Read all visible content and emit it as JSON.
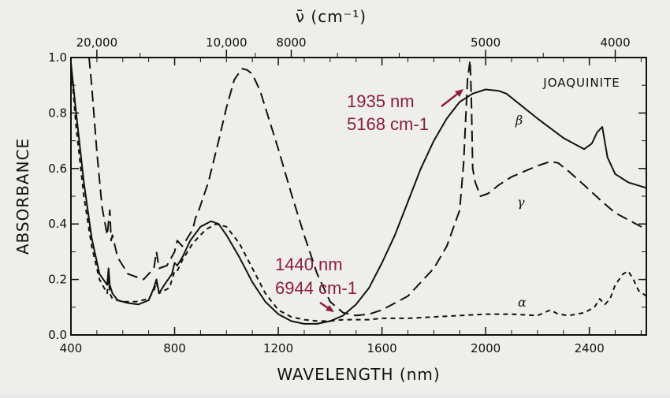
{
  "chart_data": {
    "type": "line",
    "title": "JOAQUINITE",
    "xlabel": "WAVELENGTH (nm)",
    "ylabel": "ABSORBANCE",
    "top_axis_label": "ν̄ (cm⁻¹)",
    "xlim": [
      400,
      2620
    ],
    "ylim": [
      0.0,
      1.0
    ],
    "x_ticks": [
      400,
      800,
      1200,
      1600,
      2000,
      2400
    ],
    "x_tick_labels": [
      "400",
      "800",
      "1200",
      "1600",
      "2000",
      "2400"
    ],
    "y_ticks": [
      0.0,
      0.2,
      0.4,
      0.6,
      0.8,
      1.0
    ],
    "y_tick_labels": [
      "0.0",
      "0.2",
      "0.4",
      "0.6",
      "0.8",
      "1.0"
    ],
    "top_ticks": [
      20000,
      10000,
      8000,
      5000,
      4000
    ],
    "top_tick_labels": [
      "20,000",
      "10,000",
      "8000",
      "5000",
      "4000"
    ],
    "series": [
      {
        "name": "β",
        "style": "solid",
        "x": [
          400,
          420,
          450,
          480,
          510,
          540,
          545,
          550,
          560,
          580,
          620,
          660,
          700,
          720,
          730,
          740,
          760,
          790,
          800,
          810,
          830,
          860,
          900,
          940,
          970,
          1000,
          1050,
          1100,
          1150,
          1200,
          1250,
          1300,
          1350,
          1400,
          1450,
          1500,
          1550,
          1600,
          1650,
          1700,
          1750,
          1800,
          1850,
          1900,
          1950,
          2000,
          2050,
          2080,
          2120,
          2200,
          2300,
          2380,
          2410,
          2430,
          2450,
          2470,
          2500,
          2550,
          2620
        ],
        "y": [
          0.98,
          0.8,
          0.55,
          0.35,
          0.22,
          0.18,
          0.24,
          0.18,
          0.15,
          0.125,
          0.115,
          0.11,
          0.125,
          0.17,
          0.2,
          0.15,
          0.18,
          0.22,
          0.26,
          0.25,
          0.28,
          0.34,
          0.39,
          0.41,
          0.4,
          0.36,
          0.28,
          0.19,
          0.12,
          0.075,
          0.05,
          0.04,
          0.04,
          0.05,
          0.07,
          0.11,
          0.17,
          0.26,
          0.36,
          0.48,
          0.6,
          0.7,
          0.78,
          0.84,
          0.87,
          0.885,
          0.88,
          0.87,
          0.84,
          0.78,
          0.71,
          0.67,
          0.69,
          0.73,
          0.75,
          0.64,
          0.58,
          0.55,
          0.53
        ]
      },
      {
        "name": "γ",
        "style": "long-dash",
        "x": [
          470,
          480,
          500,
          520,
          540,
          550,
          555,
          560,
          580,
          620,
          680,
          720,
          730,
          740,
          770,
          800,
          810,
          830,
          870,
          880,
          890,
          930,
          970,
          1000,
          1030,
          1060,
          1080,
          1100,
          1130,
          1160,
          1200,
          1250,
          1300,
          1350,
          1400,
          1450,
          1500,
          1550,
          1600,
          1700,
          1800,
          1850,
          1900,
          1915,
          1930,
          1940,
          1945,
          1950,
          1960,
          1980,
          2010,
          2050,
          2100,
          2150,
          2200,
          2250,
          2280,
          2320,
          2380,
          2450,
          2500,
          2560,
          2620
        ],
        "y": [
          1.0,
          0.9,
          0.66,
          0.46,
          0.36,
          0.45,
          0.34,
          0.36,
          0.28,
          0.22,
          0.2,
          0.24,
          0.3,
          0.24,
          0.25,
          0.3,
          0.34,
          0.32,
          0.38,
          0.42,
          0.44,
          0.55,
          0.7,
          0.82,
          0.92,
          0.96,
          0.955,
          0.94,
          0.88,
          0.79,
          0.67,
          0.51,
          0.36,
          0.22,
          0.12,
          0.08,
          0.07,
          0.075,
          0.09,
          0.14,
          0.24,
          0.32,
          0.45,
          0.62,
          0.92,
          0.99,
          0.85,
          0.6,
          0.55,
          0.5,
          0.51,
          0.54,
          0.57,
          0.59,
          0.61,
          0.625,
          0.62,
          0.59,
          0.54,
          0.48,
          0.44,
          0.41,
          0.38
        ]
      },
      {
        "name": "α",
        "style": "short-dash",
        "x": [
          400,
          420,
          450,
          480,
          510,
          540,
          545,
          550,
          560,
          600,
          650,
          700,
          720,
          730,
          740,
          780,
          800,
          810,
          830,
          870,
          920,
          960,
          1000,
          1050,
          1100,
          1150,
          1200,
          1250,
          1300,
          1350,
          1400,
          1450,
          1500,
          1550,
          1600,
          1700,
          1800,
          1900,
          2000,
          2100,
          2200,
          2250,
          2280,
          2320,
          2380,
          2420,
          2440,
          2460,
          2480,
          2500,
          2530,
          2550,
          2570,
          2590,
          2620
        ],
        "y": [
          0.98,
          0.75,
          0.5,
          0.32,
          0.2,
          0.15,
          0.21,
          0.15,
          0.13,
          0.12,
          0.12,
          0.13,
          0.16,
          0.19,
          0.15,
          0.17,
          0.23,
          0.23,
          0.27,
          0.33,
          0.38,
          0.4,
          0.39,
          0.33,
          0.24,
          0.15,
          0.09,
          0.065,
          0.055,
          0.05,
          0.05,
          0.055,
          0.055,
          0.055,
          0.06,
          0.06,
          0.065,
          0.07,
          0.075,
          0.075,
          0.07,
          0.09,
          0.075,
          0.07,
          0.08,
          0.1,
          0.13,
          0.11,
          0.13,
          0.18,
          0.22,
          0.23,
          0.2,
          0.16,
          0.14
        ]
      }
    ],
    "annotations": [
      {
        "lines": [
          "1935 nm",
          "5168 cm-1"
        ],
        "points_to": {
          "x": 1935,
          "y": 0.92
        }
      },
      {
        "lines": [
          "1440 nm",
          "6944 cm-1"
        ],
        "points_to": {
          "x": 1440,
          "y": 0.09
        }
      }
    ]
  }
}
